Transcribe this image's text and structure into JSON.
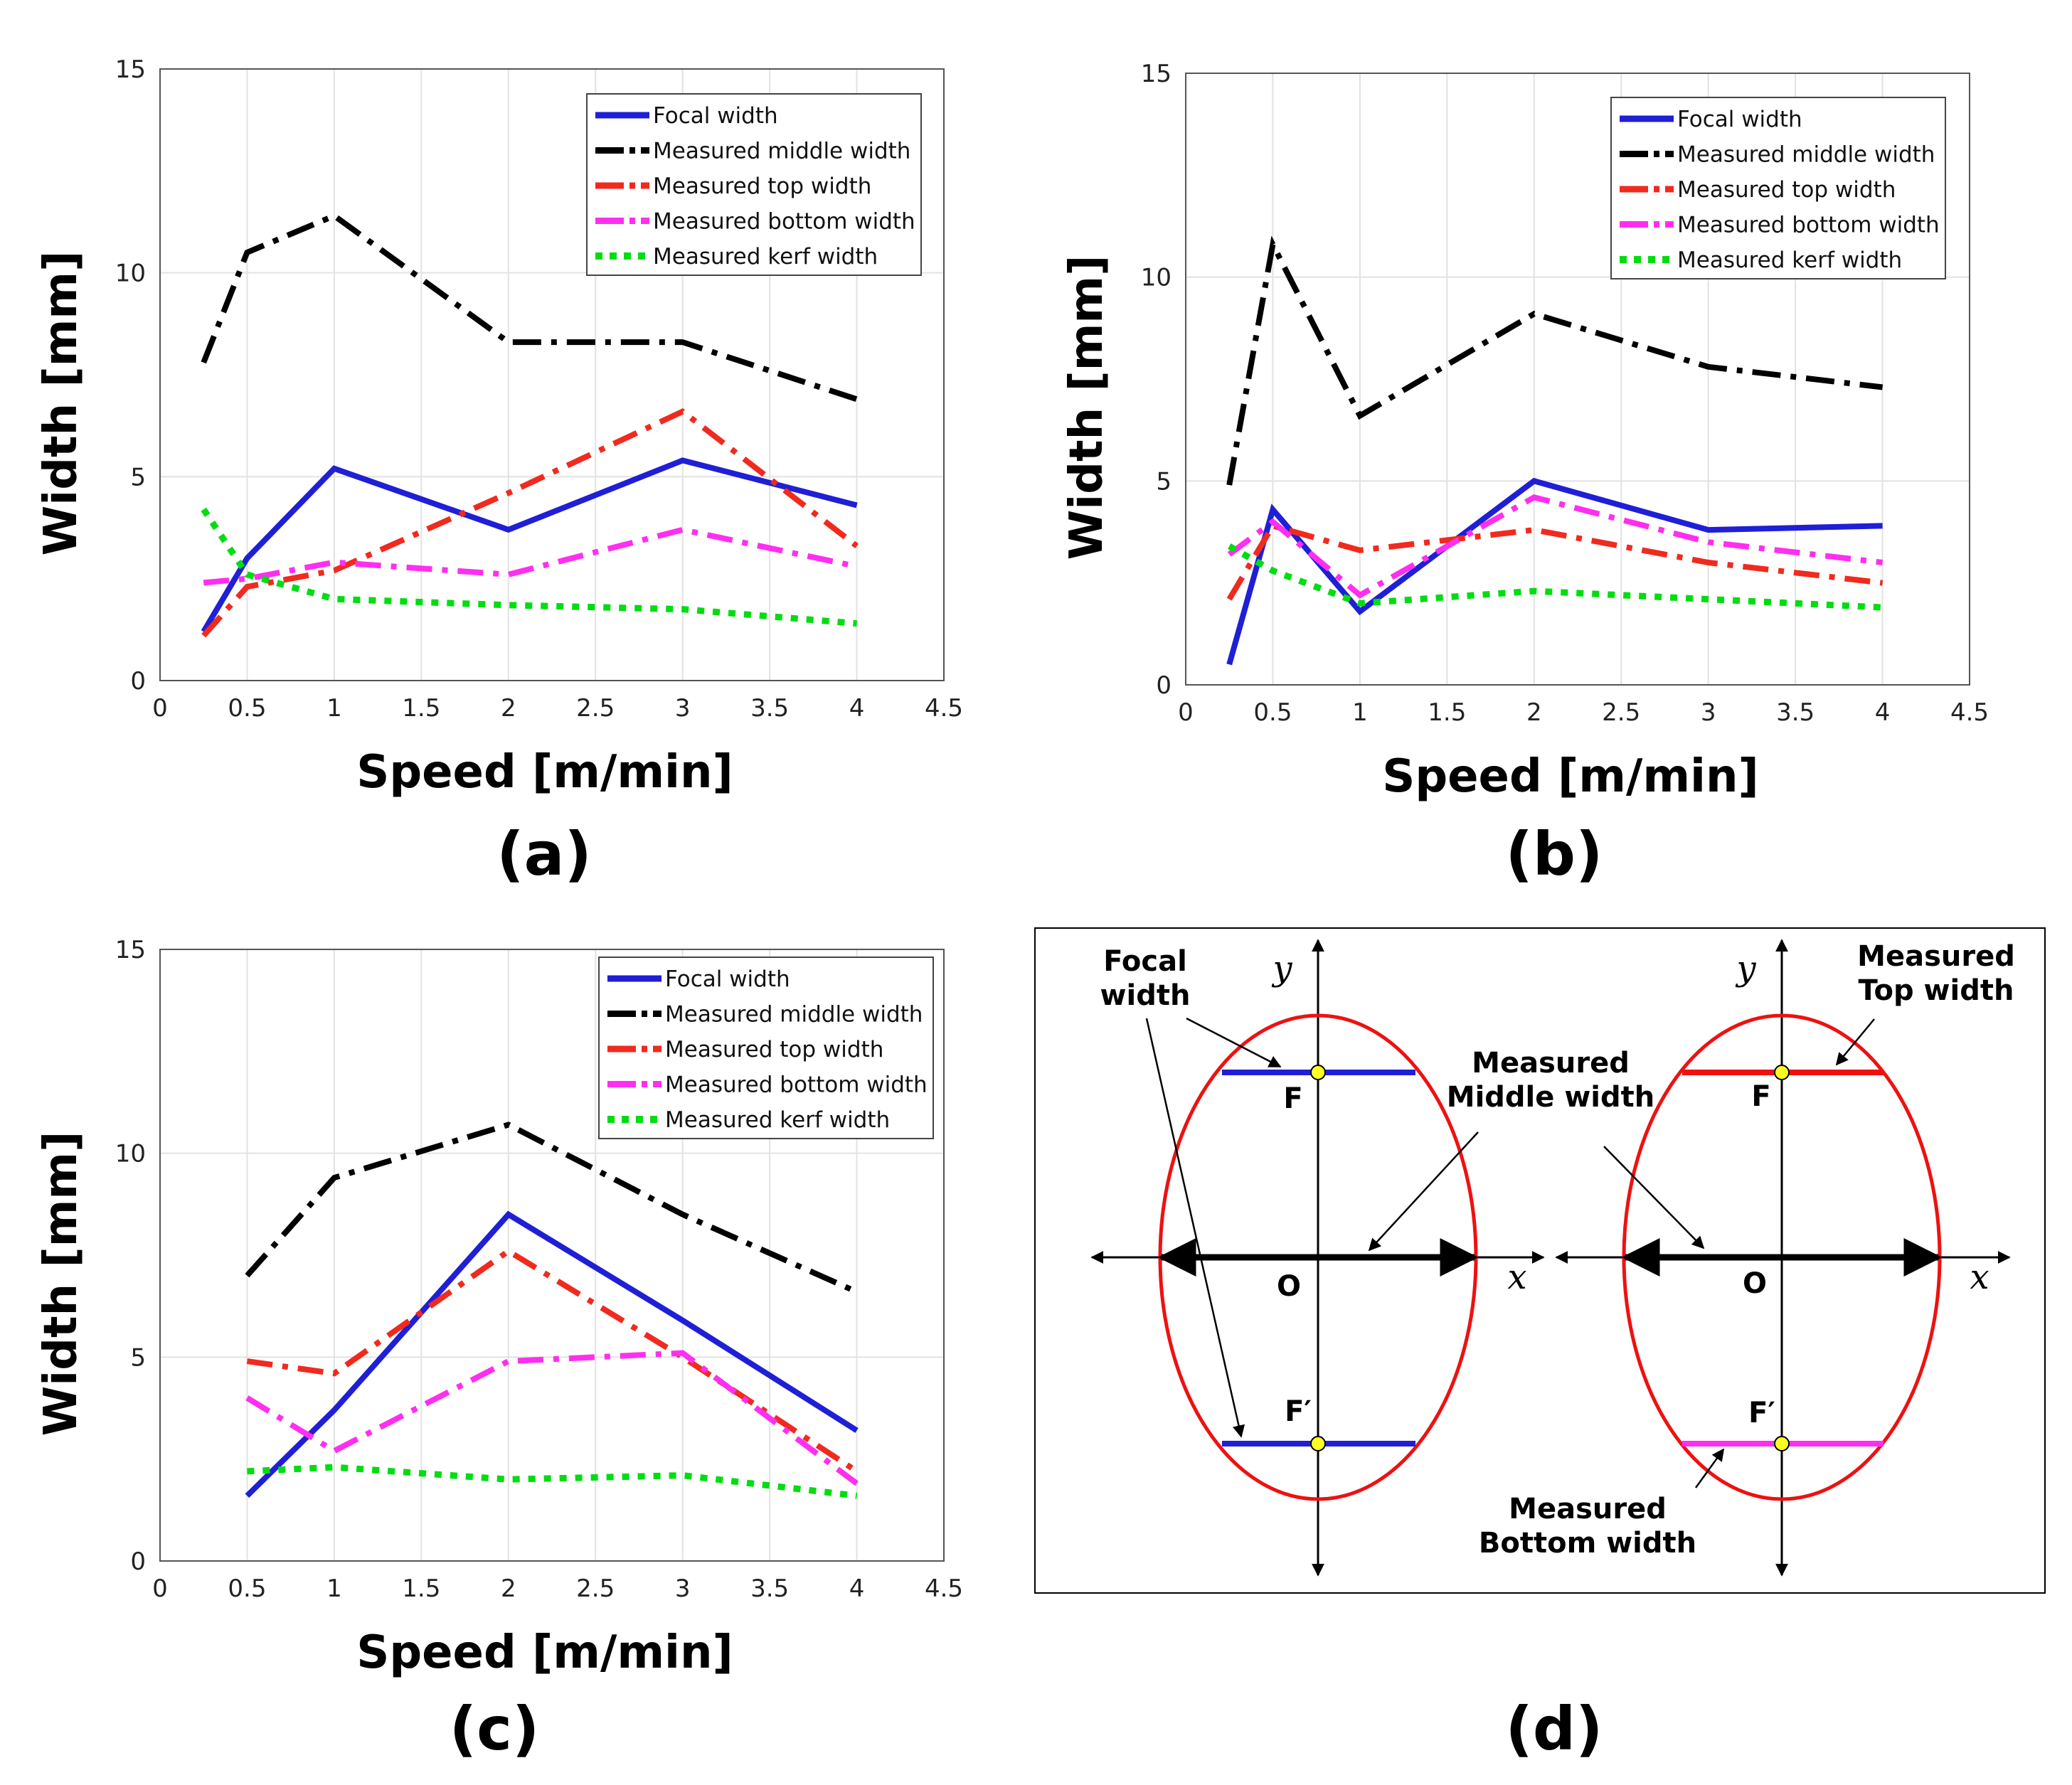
{
  "panel_labels": [
    "(a)",
    "(b)",
    "(c)",
    "(d)"
  ],
  "chart_data": [
    {
      "type": "line",
      "panel": "(a)",
      "xlabel": "Speed [m/min]",
      "ylabel": "Width [mm]",
      "xlim": [
        0,
        4.5
      ],
      "ylim": [
        0,
        15
      ],
      "xticks": [
        "0",
        "0.5",
        "1",
        "1.5",
        "2",
        "2.5",
        "3",
        "3.5",
        "4",
        "4.5"
      ],
      "yticks": [
        "0",
        "5",
        "10",
        "15"
      ],
      "grid": true,
      "legend_position": "top-right",
      "x": [
        0.25,
        0.5,
        1,
        2,
        3,
        4
      ],
      "series": [
        {
          "name": "Focal width",
          "values": [
            1.2,
            3.0,
            5.2,
            3.7,
            5.4,
            4.3
          ]
        },
        {
          "name": "Measured middle width",
          "values": [
            7.8,
            10.5,
            11.4,
            8.3,
            8.3,
            6.9
          ]
        },
        {
          "name": "Measured top width",
          "values": [
            1.1,
            2.3,
            2.7,
            4.6,
            6.6,
            3.3
          ]
        },
        {
          "name": "Measured bottom width",
          "values": [
            2.4,
            2.5,
            2.9,
            2.6,
            3.7,
            2.8
          ]
        },
        {
          "name": "Measured kerf width",
          "values": [
            4.2,
            2.6,
            2.0,
            1.85,
            1.75,
            1.4
          ]
        }
      ]
    },
    {
      "type": "line",
      "panel": "(b)",
      "xlabel": "Speed [m/min]",
      "ylabel": "Width [mm]",
      "xlim": [
        0,
        4.5
      ],
      "ylim": [
        0,
        15
      ],
      "xticks": [
        "0",
        "0.5",
        "1",
        "1.5",
        "2",
        "2.5",
        "3",
        "3.5",
        "4",
        "4.5"
      ],
      "yticks": [
        "0",
        "5",
        "10",
        "15"
      ],
      "grid": true,
      "legend_position": "top-right",
      "x": [
        0.25,
        0.5,
        1,
        2,
        3,
        4
      ],
      "series": [
        {
          "name": "Focal width",
          "values": [
            0.5,
            4.3,
            1.8,
            5.0,
            3.8,
            3.9
          ]
        },
        {
          "name": "Measured middle width",
          "values": [
            4.9,
            10.8,
            6.6,
            9.1,
            7.8,
            7.3
          ]
        },
        {
          "name": "Measured top width",
          "values": [
            2.1,
            3.9,
            3.3,
            3.8,
            3.0,
            2.5
          ]
        },
        {
          "name": "Measured bottom width",
          "values": [
            3.2,
            4.0,
            2.2,
            4.6,
            3.5,
            3.0
          ]
        },
        {
          "name": "Measured kerf width",
          "values": [
            3.4,
            2.8,
            2.0,
            2.3,
            2.1,
            1.9
          ]
        }
      ]
    },
    {
      "type": "line",
      "panel": "(c)",
      "xlabel": "Speed [m/min]",
      "ylabel": "Width [mm]",
      "xlim": [
        0,
        4.5
      ],
      "ylim": [
        0,
        15
      ],
      "xticks": [
        "0",
        "0.5",
        "1",
        "1.5",
        "2",
        "2.5",
        "3",
        "3.5",
        "4",
        "4.5"
      ],
      "yticks": [
        "0",
        "5",
        "10",
        "15"
      ],
      "grid": true,
      "legend_position": "top-right",
      "x": [
        0.5,
        1,
        2,
        3,
        4
      ],
      "series": [
        {
          "name": "Focal width",
          "values": [
            1.6,
            3.7,
            8.5,
            5.9,
            3.2
          ]
        },
        {
          "name": "Measured middle width",
          "values": [
            7.0,
            9.4,
            10.7,
            8.5,
            6.6
          ]
        },
        {
          "name": "Measured top width",
          "values": [
            4.9,
            4.6,
            7.6,
            5.0,
            2.2
          ]
        },
        {
          "name": "Measured bottom width",
          "values": [
            4.0,
            2.7,
            4.9,
            5.1,
            1.9
          ]
        },
        {
          "name": "Measured kerf width",
          "values": [
            2.2,
            2.3,
            2.0,
            2.1,
            1.6
          ]
        }
      ]
    }
  ],
  "series_colors": [
    "#1f1fd6",
    "#000000",
    "#f02a1e",
    "#ff2ef0",
    "#00dd10"
  ],
  "diagram": {
    "panel": "(d)",
    "labels": {
      "focal_line1": "Focal",
      "focal_line2": "width",
      "middle_line1": "Measured",
      "middle_line2": "Middle width",
      "top_line1": "Measured",
      "top_line2": "Top width",
      "bottom_line1": "Measured",
      "bottom_line2": "Bottom width",
      "f": "F",
      "f_prime": "F′",
      "origin": "O",
      "axis_x": "x",
      "axis_y": "y"
    },
    "colors": {
      "ellipse": "#ee1111",
      "focal": "#1f1fd6",
      "top": "#ee1111",
      "bottom": "#ff2ef0",
      "point": "#ffff22"
    }
  }
}
